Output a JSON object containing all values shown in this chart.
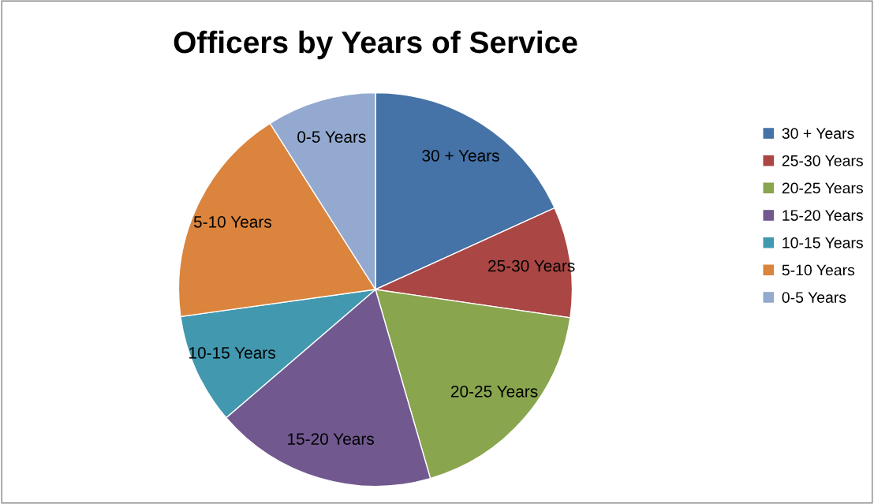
{
  "chart_data": {
    "type": "pie",
    "title": "Officers by Years of Service",
    "categories": [
      "30 + Years",
      "25-30 Years",
      "20-25 Years",
      "15-20 Years",
      "10-15 Years",
      "5-10 Years",
      "0-5 Years"
    ],
    "values": [
      18.2,
      9.1,
      18.2,
      18.2,
      9.1,
      18.2,
      9.0
    ],
    "colors": [
      "#4572a7",
      "#aa4643",
      "#89a54e",
      "#71588f",
      "#4198af",
      "#db843d",
      "#93a9cf"
    ],
    "legend": "right"
  }
}
